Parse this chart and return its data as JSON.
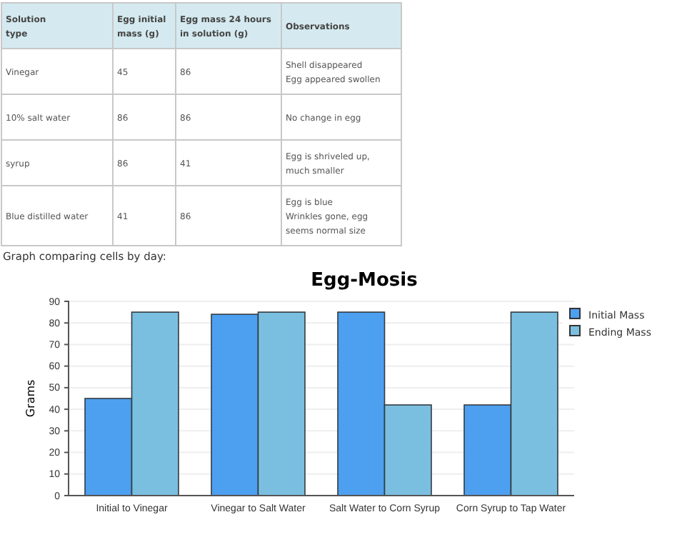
{
  "chart_data": [
    {
      "type": "other",
      "annotations": [
        "Solution\ntype",
        "Egg initial\nmass (g)",
        "Egg mass 24 hours\nin solution (g)",
        "Observations",
        "Vinegar",
        "45",
        "86",
        "Shell disappeared\nEgg appeared swollen",
        "10% salt water",
        "86",
        "86",
        "No change in egg",
        "syrup",
        "86",
        "41",
        "Egg is shriveled up,\nmuch smaller",
        "Blue distilled water",
        "41",
        "86",
        "Egg is blue\nWrinkles gone, egg\nseems normal size",
        "Graph comparing cells by day:"
      ]
    },
    {
      "type": "bar",
      "title": "Egg-Mosis",
      "ylabel": "Grams",
      "categories": [
        "Initial to Vinegar",
        "Vinegar to Salt Water",
        "Salt Water to Corn Syrup",
        "Corn Syrup to Tap Water"
      ],
      "series": [
        {
          "name": "Initial Mass",
          "color": "#4d9ff0",
          "values": [
            45,
            84,
            85,
            42
          ]
        },
        {
          "name": "Ending Mass",
          "color": "#7bbfe0",
          "values": [
            85,
            85,
            42,
            85
          ]
        }
      ],
      "ylim": [
        0,
        90
      ],
      "yticks": [
        0,
        10,
        20,
        30,
        40,
        50,
        60,
        70,
        80,
        90
      ],
      "grid": "y",
      "legend": "top right"
    }
  ]
}
